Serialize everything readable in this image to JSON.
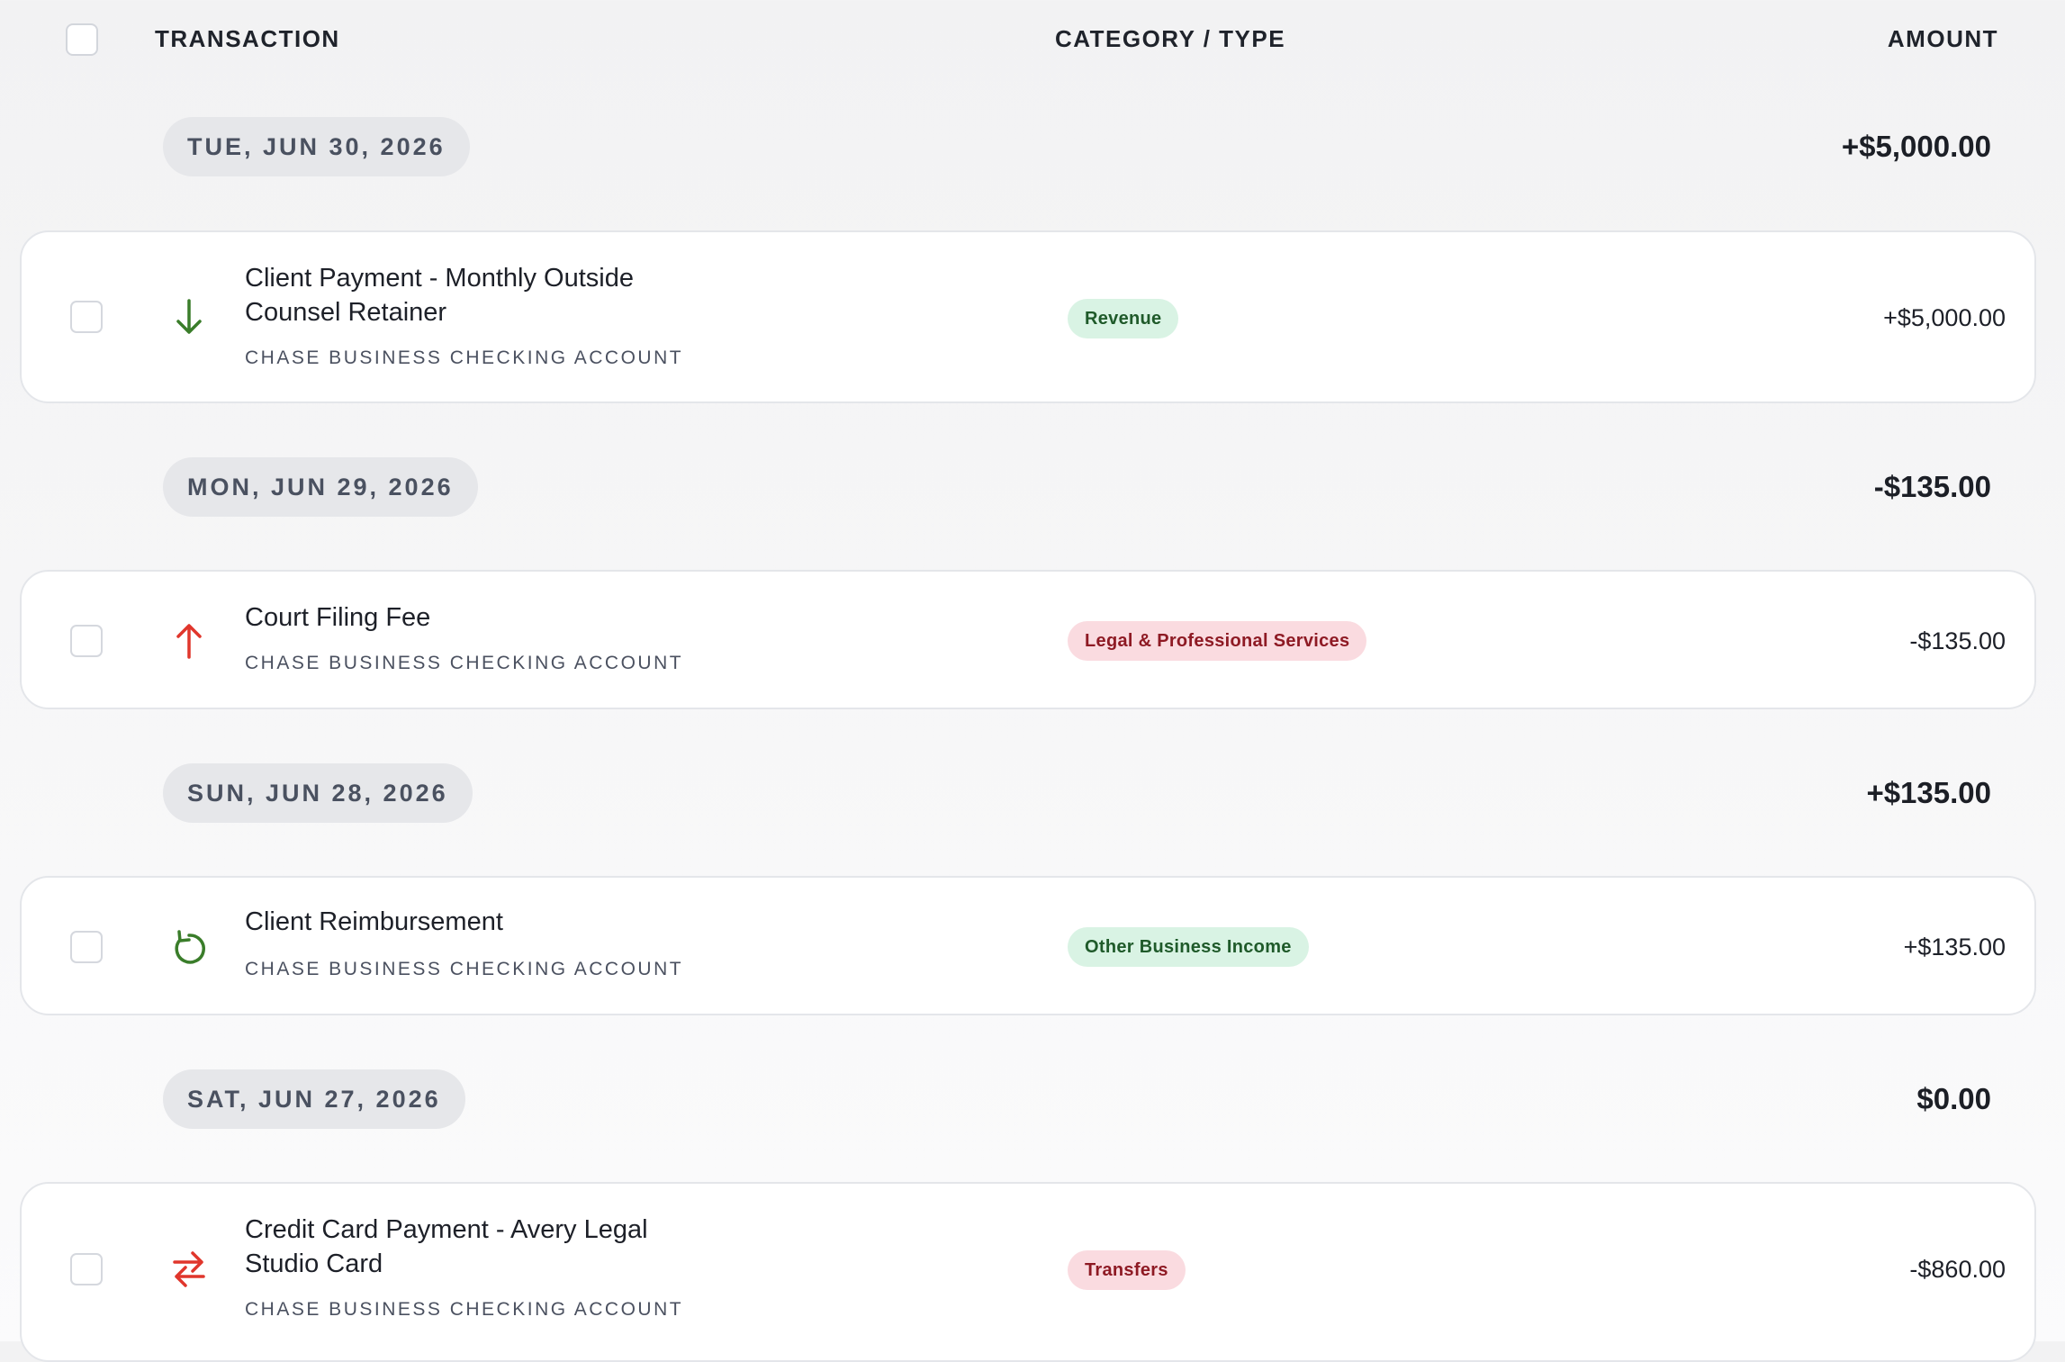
{
  "header": {
    "transaction_label": "TRANSACTION",
    "category_label": "CATEGORY / TYPE",
    "amount_label": "AMOUNT"
  },
  "groups": [
    {
      "date": "TUE, JUN 30, 2026",
      "total": "+$5,000.00",
      "transactions": [
        {
          "title_line1": "Client Payment - Monthly Outside",
          "title_line2": "Counsel Retainer",
          "account": "CHASE BUSINESS CHECKING ACCOUNT",
          "category": "Revenue",
          "amount": "+$5,000.00",
          "icon": "arrow-down-icon",
          "icon_color": "#3a7d2a"
        }
      ]
    },
    {
      "date": "MON, JUN 29, 2026",
      "total": "-$135.00",
      "transactions": [
        {
          "title_line1": "Court Filing Fee",
          "account": "CHASE BUSINESS CHECKING ACCOUNT",
          "category": "Legal & Professional Services",
          "amount": "-$135.00",
          "icon": "arrow-up-icon",
          "icon_color": "#e0362c"
        }
      ]
    },
    {
      "date": "SUN, JUN 28, 2026",
      "total": "+$135.00",
      "transactions": [
        {
          "title_line1": "Client Reimbursement",
          "account": "CHASE BUSINESS CHECKING ACCOUNT",
          "category": "Other Business Income",
          "amount": "+$135.00",
          "icon": "refresh-icon",
          "icon_color": "#3a7d2a"
        }
      ]
    },
    {
      "date": "SAT, JUN 27, 2026",
      "total": "$0.00",
      "transactions": [
        {
          "title_line1": "Credit Card Payment - Avery Legal",
          "title_line2": "Studio Card",
          "account": "CHASE BUSINESS CHECKING ACCOUNT",
          "category": "Transfers",
          "amount": "-$860.00",
          "icon": "transfer-arrows-icon",
          "icon_color": "#e0362c"
        }
      ]
    }
  ],
  "colors": {
    "income_badge_bg": "#d9f3e4",
    "expense_badge_bg": "#fadbe0"
  }
}
